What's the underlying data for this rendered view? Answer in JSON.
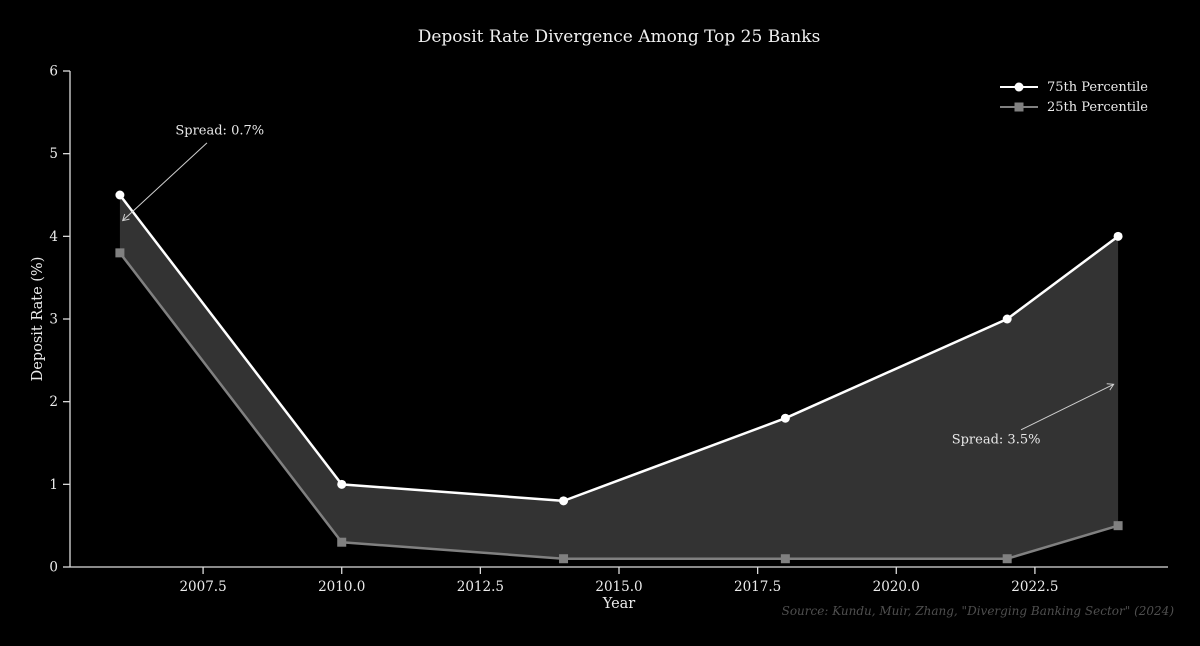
{
  "chart_data": {
    "type": "area",
    "title": "Deposit Rate Divergence Among Top 25 Banks",
    "xlabel": "Year",
    "ylabel": "Deposit Rate (%)",
    "x": [
      2006,
      2010,
      2014,
      2018,
      2022,
      2024
    ],
    "series": [
      {
        "name": "75th Percentile",
        "marker": "circle",
        "color": "#ffffff",
        "values": [
          4.5,
          1.0,
          0.8,
          1.8,
          3.0,
          4.0
        ]
      },
      {
        "name": "25th Percentile",
        "marker": "square",
        "color": "#808080",
        "values": [
          3.8,
          0.3,
          0.1,
          0.1,
          0.1,
          0.5
        ]
      }
    ],
    "fill_between": {
      "between": [
        "75th Percentile",
        "25th Percentile"
      ],
      "color": "#333333"
    },
    "xlim": [
      2005.1,
      2024.9
    ],
    "ylim": [
      0,
      6
    ],
    "xticks": [
      "2007.5",
      "2010.0",
      "2012.5",
      "2015.0",
      "2017.5",
      "2020.0",
      "2022.5"
    ],
    "yticks": [
      "0",
      "1",
      "2",
      "3",
      "4",
      "5",
      "6"
    ],
    "grid": false,
    "legend_position": "upper right",
    "background_color": "#000000",
    "text_color": "#ebebeb",
    "axis_color": "#dcdcdc",
    "annotation_arrow_color": "#cfcfcf",
    "annotations": [
      {
        "text": "Spread: 0.7%",
        "text_xy": [
          2007.8,
          5.27
        ],
        "arrow_start": [
          2007.57,
          5.13
        ],
        "arrow_end": [
          2006.05,
          4.19
        ]
      },
      {
        "text": "Spread: 3.5%",
        "text_xy": [
          2021.8,
          1.54
        ],
        "arrow_start": [
          2022.25,
          1.66
        ],
        "arrow_end": [
          2023.92,
          2.21
        ]
      }
    ],
    "source": "Source: Kundu, Muir, Zhang, \"Diverging Banking Sector\" (2024)"
  }
}
